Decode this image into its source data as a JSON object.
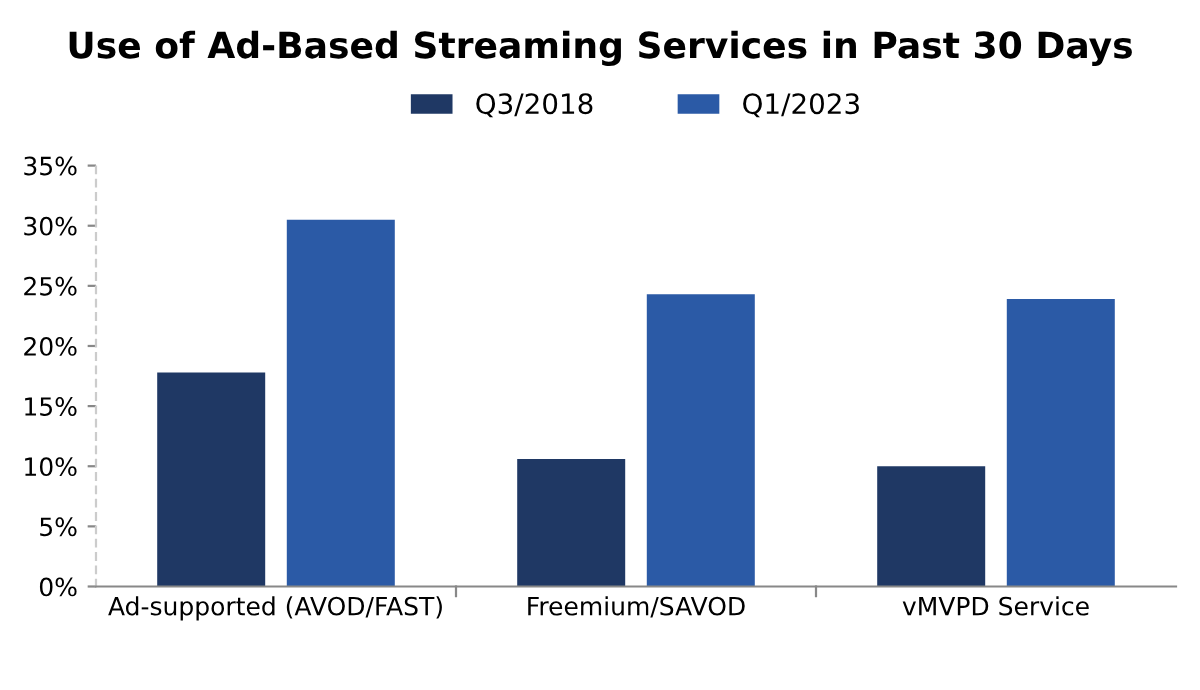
{
  "chart_data": {
    "type": "bar",
    "title": "Use of Ad-Based Streaming Services in Past 30 Days",
    "categories": [
      "Ad-supported (AVOD/FAST)",
      "Freemium/SAVOD",
      "vMVPD Service"
    ],
    "series": [
      {
        "name": "Q3/2018",
        "color": "#1f3864",
        "values": [
          17.8,
          10.6,
          10.0
        ]
      },
      {
        "name": "Q1/2023",
        "color": "#2b5aa6",
        "values": [
          30.5,
          24.3,
          23.9
        ]
      }
    ],
    "ylim": [
      0,
      35
    ],
    "yticks": [
      {
        "value": 0,
        "label": "0%"
      },
      {
        "value": 5,
        "label": "5%"
      },
      {
        "value": 10,
        "label": "10%"
      },
      {
        "value": 15,
        "label": "15%"
      },
      {
        "value": 20,
        "label": "20%"
      },
      {
        "value": 25,
        "label": "25%"
      },
      {
        "value": 30,
        "label": "30%"
      },
      {
        "value": 35,
        "label": "35%"
      }
    ],
    "grid": false,
    "legend": "top"
  }
}
